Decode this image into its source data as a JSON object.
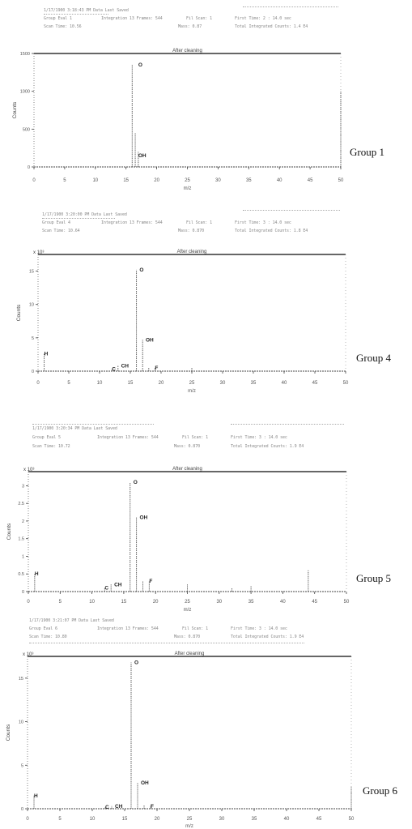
{
  "panels": [
    {
      "group_label": "Group 1",
      "header_lines": [
        "1/17/1900 3:18:43 PM Data Last Saved",
        "Group Eval 1",
        "Integration 13 Frames: 544",
        "Fil Scan: 1",
        "First Time: 2 : 14.0 sec",
        "Scan Time: 10.56",
        "Mass: 0.87",
        "Total Integrated Counts: 1.4 E4"
      ],
      "scale_label": "",
      "chart_data": {
        "type": "bar",
        "title": "After cleaning",
        "xlabel": "m/z",
        "ylabel": "Counts",
        "xlim": [
          0,
          50
        ],
        "ylim": [
          0,
          1500
        ],
        "xticks": [
          0,
          5,
          10,
          15,
          20,
          25,
          30,
          35,
          40,
          45,
          50
        ],
        "yticks": [
          0,
          500,
          1000,
          1500
        ],
        "ytick_labels": [
          "0",
          "500",
          "1000",
          "1500"
        ],
        "x": [
          16,
          17,
          16.5,
          50
        ],
        "values": [
          1350,
          200,
          450,
          1000
        ],
        "peak_labels": [
          {
            "text": "O",
            "x": 17,
            "y": 1350
          },
          {
            "text": "OH",
            "x": 17,
            "y": 150
          }
        ]
      }
    },
    {
      "group_label": "Group 4",
      "header_lines": [
        "1/17/1900 3:20:00 PM Data Last Saved",
        "Group Eval 4",
        "Integration 13 Frames: 544",
        "Fil Scan: 1",
        "First Time: 3 : 14.0 sec",
        "Scan Time: 10.64",
        "Mass: 0.870",
        "Total Integrated Counts: 1.8 E4"
      ],
      "scale_label": "x 10³",
      "chart_data": {
        "type": "bar",
        "title": "After cleaning",
        "xlabel": "m/z",
        "ylabel": "Counts",
        "xlim": [
          0,
          50
        ],
        "ylim": [
          0,
          17.5
        ],
        "xticks": [
          0,
          5,
          10,
          15,
          20,
          25,
          30,
          35,
          40,
          45,
          50
        ],
        "yticks": [
          0,
          5,
          10,
          15
        ],
        "ytick_labels": [
          "0",
          "5",
          "10",
          "15"
        ],
        "x": [
          1,
          12,
          13,
          16,
          17,
          18,
          19,
          25
        ],
        "values": [
          2.6,
          0.3,
          0.8,
          15.2,
          4.7,
          0.6,
          0.5,
          0.5
        ],
        "peak_labels": [
          {
            "text": "H",
            "x": 1,
            "y": 2.6
          },
          {
            "text": "C",
            "x": 12,
            "y": 0.3
          },
          {
            "text": "CH",
            "x": 13.5,
            "y": 0.8
          },
          {
            "text": "O",
            "x": 16.5,
            "y": 15.2
          },
          {
            "text": "OH",
            "x": 17.5,
            "y": 4.7
          },
          {
            "text": "F",
            "x": 19,
            "y": 0.5
          }
        ]
      }
    },
    {
      "group_label": "Group 5",
      "header_lines": [
        "1/17/1900 3:20:34 PM Data Last Saved",
        "Group Eval 5",
        "Integration 13 Frames: 544",
        "Fil Scan: 1",
        "First Time: 3 : 14.0 sec",
        "Scan Time: 10.72",
        "Mass: 0.870",
        "Total Integrated Counts: 1.9 E4"
      ],
      "scale_label": "x 10³",
      "chart_data": {
        "type": "bar",
        "title": "After cleaning",
        "xlabel": "m/z",
        "ylabel": "Counts",
        "xlim": [
          0,
          50
        ],
        "ylim": [
          0,
          3.4
        ],
        "xticks": [
          0,
          5,
          10,
          15,
          20,
          25,
          30,
          35,
          40,
          45,
          50
        ],
        "yticks": [
          0,
          0.5,
          1,
          1.5,
          2,
          2.5,
          3
        ],
        "ytick_labels": [
          "0",
          "0.5",
          "1",
          "1.5",
          "2",
          "2.5",
          "3"
        ],
        "x": [
          1,
          12,
          13,
          16,
          17,
          18,
          19,
          25,
          32,
          35,
          44
        ],
        "values": [
          0.5,
          0.1,
          0.2,
          3.1,
          2.1,
          0.3,
          0.3,
          0.2,
          0.1,
          0.15,
          0.6
        ],
        "peak_labels": [
          {
            "text": "H",
            "x": 1,
            "y": 0.5
          },
          {
            "text": "C",
            "x": 12,
            "y": 0.1
          },
          {
            "text": "CH",
            "x": 13.5,
            "y": 0.2
          },
          {
            "text": "O",
            "x": 16.5,
            "y": 3.1
          },
          {
            "text": "OH",
            "x": 17.5,
            "y": 2.1
          },
          {
            "text": "F",
            "x": 19,
            "y": 0.3
          }
        ]
      }
    },
    {
      "group_label": "Group 6",
      "header_lines": [
        "1/17/1900 3:21:07 PM Data Last Saved",
        "Group Eval 6",
        "Integration 13 Frames: 544",
        "Fil Scan: 1",
        "First Time: 3 : 14.0 sec",
        "Scan Time: 10.80",
        "Mass: 0.870",
        "Total Integrated Counts: 1.9 E4"
      ],
      "scale_label": "x 10³",
      "chart_data": {
        "type": "bar",
        "title": "After cleaning",
        "xlabel": "m/z",
        "ylabel": "Counts",
        "xlim": [
          0,
          50
        ],
        "ylim": [
          0,
          17.5
        ],
        "xticks": [
          0,
          5,
          10,
          15,
          20,
          25,
          30,
          35,
          40,
          45,
          50
        ],
        "yticks": [
          0,
          5,
          10,
          15
        ],
        "ytick_labels": [
          "0",
          "5",
          "10",
          "15"
        ],
        "x": [
          1,
          12,
          13,
          16,
          17,
          18,
          19,
          50
        ],
        "values": [
          1.5,
          0.2,
          0.3,
          16.8,
          3.0,
          0.4,
          0.3,
          2.5
        ],
        "peak_labels": [
          {
            "text": "H",
            "x": 1,
            "y": 1.5
          },
          {
            "text": "C",
            "x": 12,
            "y": 0.2
          },
          {
            "text": "CH",
            "x": 13.5,
            "y": 0.3
          },
          {
            "text": "O",
            "x": 16.5,
            "y": 16.8
          },
          {
            "text": "OH",
            "x": 17.5,
            "y": 3.0
          },
          {
            "text": "F",
            "x": 19,
            "y": 0.3
          }
        ]
      }
    }
  ]
}
